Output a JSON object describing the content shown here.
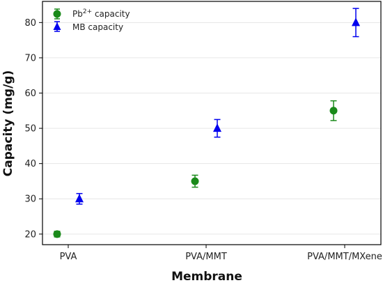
{
  "chart_data": {
    "type": "scatter",
    "categories": [
      "PVA",
      "PVA/MMT",
      "PVA/MMT/MXene"
    ],
    "series": [
      {
        "name_base": "Pb",
        "name_sup": "2+",
        "name_rest": " capacity",
        "marker": "circle",
        "color": "#1a8a1a",
        "values": [
          20,
          35,
          55
        ],
        "errors": [
          0.8,
          1.7,
          2.8
        ]
      },
      {
        "name": "MB capacity",
        "marker": "triangle",
        "color": "#0000ee",
        "values": [
          30,
          50,
          80
        ],
        "errors": [
          1.5,
          2.5,
          4.0
        ]
      }
    ],
    "xlabel": "Membrane",
    "ylabel": "Capacity (mg/g)",
    "ylim": [
      17,
      86
    ],
    "yticks": [
      20,
      30,
      40,
      50,
      60,
      70,
      80
    ],
    "grid": "horizontal",
    "legend": "top-left"
  }
}
